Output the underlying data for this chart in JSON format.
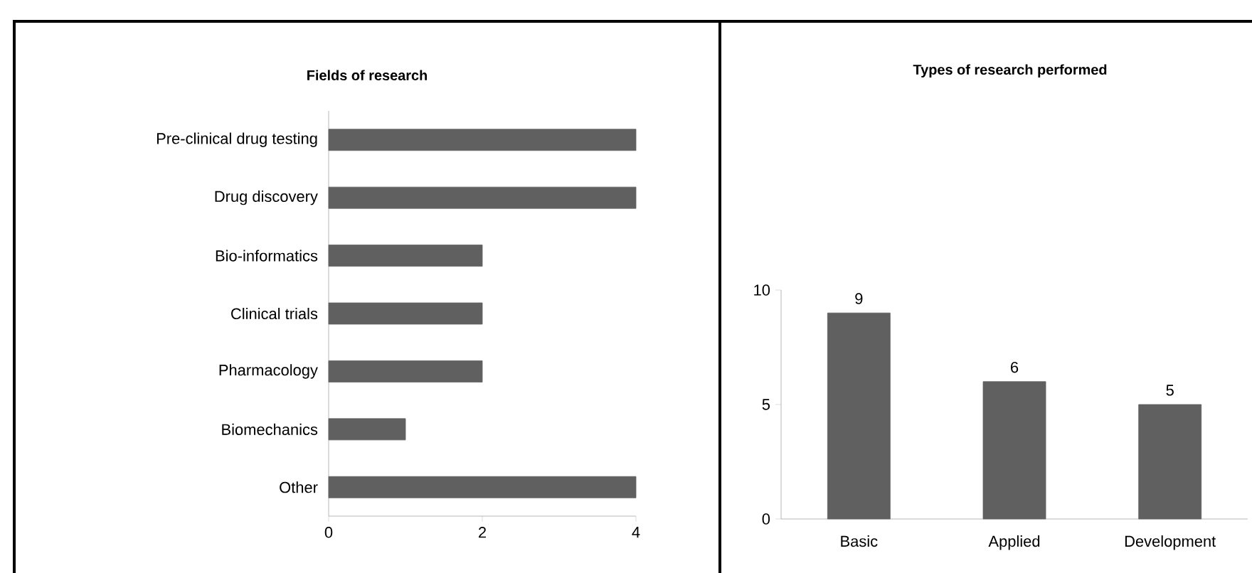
{
  "chart_data": [
    {
      "type": "bar",
      "orientation": "horizontal",
      "title": "Fields of research",
      "categories": [
        "Pre-clinical drug testing",
        "Drug discovery",
        "Bio-informatics",
        "Clinical trials",
        "Pharmacology",
        "Biomechanics",
        "Other"
      ],
      "values": [
        4,
        4,
        2,
        2,
        2,
        1,
        4
      ],
      "color": "#606060",
      "xlim": [
        0,
        4
      ],
      "xticks": [
        0,
        2,
        4
      ],
      "grid": false
    },
    {
      "type": "bar",
      "title": "Types of research performed",
      "categories": [
        "Basic",
        "Applied",
        "Development"
      ],
      "values": [
        9,
        6,
        5
      ],
      "color": "#606060",
      "ylim": [
        0,
        10
      ],
      "yticks": [
        0,
        5,
        10
      ],
      "grid": false,
      "data_labels": true
    }
  ]
}
